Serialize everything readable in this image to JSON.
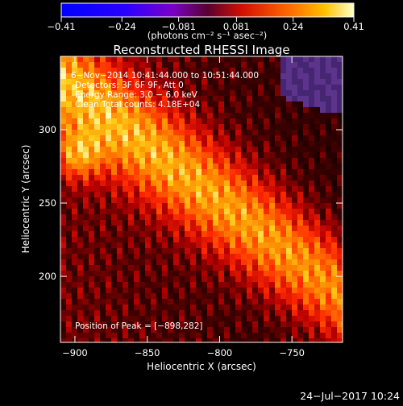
{
  "chart_data": {
    "type": "heatmap",
    "title": "Reconstructed RHESSI Image",
    "xlabel": "Heliocentric X (arcsec)",
    "ylabel": "Heliocentric Y (arcsec)",
    "xlim": [
      -910,
      -715
    ],
    "ylim": [
      155,
      350
    ],
    "xticks": [
      {
        "value": -900,
        "label": "−900"
      },
      {
        "value": -850,
        "label": "−850"
      },
      {
        "value": -800,
        "label": "−800"
      },
      {
        "value": -750,
        "label": "−750"
      }
    ],
    "yticks": [
      {
        "value": 200,
        "label": "200"
      },
      {
        "value": 250,
        "label": "250"
      },
      {
        "value": 300,
        "label": "300"
      }
    ],
    "colorbar": {
      "min": -0.41,
      "max": 0.41,
      "ticks": [
        {
          "value": -0.41,
          "label": "−0.41"
        },
        {
          "value": -0.24,
          "label": "−0.24"
        },
        {
          "value": -0.081,
          "label": "−0.081"
        },
        {
          "value": 0.081,
          "label": "0.081"
        },
        {
          "value": 0.24,
          "label": "0.24"
        },
        {
          "value": 0.41,
          "label": "0.41"
        }
      ],
      "unit_label": "(photons cm⁻² s⁻¹ asec⁻²)"
    },
    "annotations": [
      "6−Nov−2014 10:41:44.000 to 10:51:44.000",
      "Detectors: 3F 6F 9F, Att 0",
      "Energy Range: 3.0 − 6.0 keV",
      "Clean    Total counts: 4.18E+04"
    ],
    "peak_label": "Position of Peak = [−898,282]",
    "peak": {
      "x": -898,
      "y": 282
    },
    "footer_timestamp": "24−Jul−2017 10:24"
  }
}
